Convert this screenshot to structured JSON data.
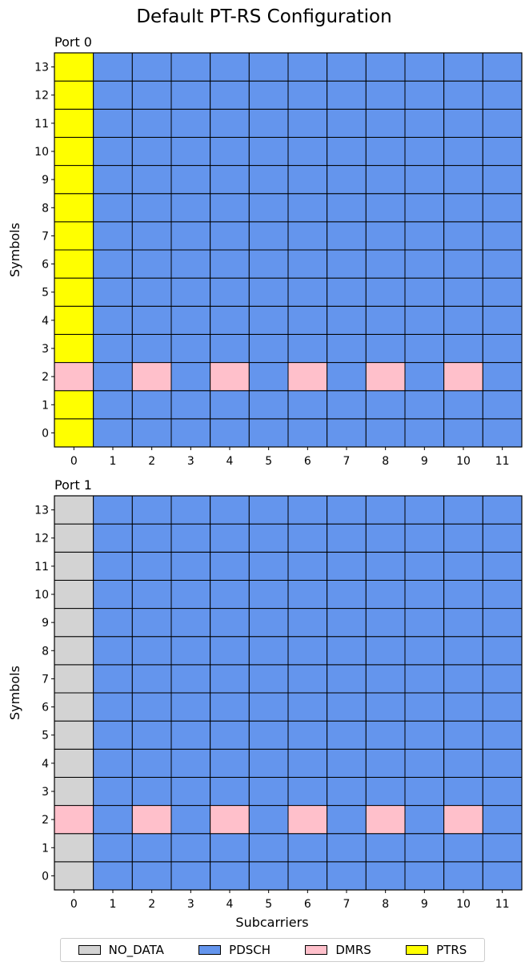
{
  "title": "Default PT-RS Configuration",
  "colors": {
    "NO_DATA": "#d3d3d3",
    "PDSCH": "#6495ed",
    "DMRS": "#ffc0cb",
    "PTRS": "#ffff00"
  },
  "chart_data": [
    {
      "type": "heatmap",
      "title": "Port 0",
      "xlabel": "",
      "ylabel": "Symbols",
      "x": [
        0,
        1,
        2,
        3,
        4,
        5,
        6,
        7,
        8,
        9,
        10,
        11
      ],
      "y": [
        0,
        1,
        2,
        3,
        4,
        5,
        6,
        7,
        8,
        9,
        10,
        11,
        12,
        13
      ],
      "grid": [
        [
          "PTRS",
          "PDSCH",
          "PDSCH",
          "PDSCH",
          "PDSCH",
          "PDSCH",
          "PDSCH",
          "PDSCH",
          "PDSCH",
          "PDSCH",
          "PDSCH",
          "PDSCH"
        ],
        [
          "PTRS",
          "PDSCH",
          "PDSCH",
          "PDSCH",
          "PDSCH",
          "PDSCH",
          "PDSCH",
          "PDSCH",
          "PDSCH",
          "PDSCH",
          "PDSCH",
          "PDSCH"
        ],
        [
          "DMRS",
          "PDSCH",
          "DMRS",
          "PDSCH",
          "DMRS",
          "PDSCH",
          "DMRS",
          "PDSCH",
          "DMRS",
          "PDSCH",
          "DMRS",
          "PDSCH"
        ],
        [
          "PTRS",
          "PDSCH",
          "PDSCH",
          "PDSCH",
          "PDSCH",
          "PDSCH",
          "PDSCH",
          "PDSCH",
          "PDSCH",
          "PDSCH",
          "PDSCH",
          "PDSCH"
        ],
        [
          "PTRS",
          "PDSCH",
          "PDSCH",
          "PDSCH",
          "PDSCH",
          "PDSCH",
          "PDSCH",
          "PDSCH",
          "PDSCH",
          "PDSCH",
          "PDSCH",
          "PDSCH"
        ],
        [
          "PTRS",
          "PDSCH",
          "PDSCH",
          "PDSCH",
          "PDSCH",
          "PDSCH",
          "PDSCH",
          "PDSCH",
          "PDSCH",
          "PDSCH",
          "PDSCH",
          "PDSCH"
        ],
        [
          "PTRS",
          "PDSCH",
          "PDSCH",
          "PDSCH",
          "PDSCH",
          "PDSCH",
          "PDSCH",
          "PDSCH",
          "PDSCH",
          "PDSCH",
          "PDSCH",
          "PDSCH"
        ],
        [
          "PTRS",
          "PDSCH",
          "PDSCH",
          "PDSCH",
          "PDSCH",
          "PDSCH",
          "PDSCH",
          "PDSCH",
          "PDSCH",
          "PDSCH",
          "PDSCH",
          "PDSCH"
        ],
        [
          "PTRS",
          "PDSCH",
          "PDSCH",
          "PDSCH",
          "PDSCH",
          "PDSCH",
          "PDSCH",
          "PDSCH",
          "PDSCH",
          "PDSCH",
          "PDSCH",
          "PDSCH"
        ],
        [
          "PTRS",
          "PDSCH",
          "PDSCH",
          "PDSCH",
          "PDSCH",
          "PDSCH",
          "PDSCH",
          "PDSCH",
          "PDSCH",
          "PDSCH",
          "PDSCH",
          "PDSCH"
        ],
        [
          "PTRS",
          "PDSCH",
          "PDSCH",
          "PDSCH",
          "PDSCH",
          "PDSCH",
          "PDSCH",
          "PDSCH",
          "PDSCH",
          "PDSCH",
          "PDSCH",
          "PDSCH"
        ],
        [
          "PTRS",
          "PDSCH",
          "PDSCH",
          "PDSCH",
          "PDSCH",
          "PDSCH",
          "PDSCH",
          "PDSCH",
          "PDSCH",
          "PDSCH",
          "PDSCH",
          "PDSCH"
        ],
        [
          "PTRS",
          "PDSCH",
          "PDSCH",
          "PDSCH",
          "PDSCH",
          "PDSCH",
          "PDSCH",
          "PDSCH",
          "PDSCH",
          "PDSCH",
          "PDSCH",
          "PDSCH"
        ],
        [
          "PTRS",
          "PDSCH",
          "PDSCH",
          "PDSCH",
          "PDSCH",
          "PDSCH",
          "PDSCH",
          "PDSCH",
          "PDSCH",
          "PDSCH",
          "PDSCH",
          "PDSCH"
        ]
      ]
    },
    {
      "type": "heatmap",
      "title": "Port 1",
      "xlabel": "Subcarriers",
      "ylabel": "Symbols",
      "x": [
        0,
        1,
        2,
        3,
        4,
        5,
        6,
        7,
        8,
        9,
        10,
        11
      ],
      "y": [
        0,
        1,
        2,
        3,
        4,
        5,
        6,
        7,
        8,
        9,
        10,
        11,
        12,
        13
      ],
      "grid": [
        [
          "NO_DATA",
          "PDSCH",
          "PDSCH",
          "PDSCH",
          "PDSCH",
          "PDSCH",
          "PDSCH",
          "PDSCH",
          "PDSCH",
          "PDSCH",
          "PDSCH",
          "PDSCH"
        ],
        [
          "NO_DATA",
          "PDSCH",
          "PDSCH",
          "PDSCH",
          "PDSCH",
          "PDSCH",
          "PDSCH",
          "PDSCH",
          "PDSCH",
          "PDSCH",
          "PDSCH",
          "PDSCH"
        ],
        [
          "DMRS",
          "PDSCH",
          "DMRS",
          "PDSCH",
          "DMRS",
          "PDSCH",
          "DMRS",
          "PDSCH",
          "DMRS",
          "PDSCH",
          "DMRS",
          "PDSCH"
        ],
        [
          "NO_DATA",
          "PDSCH",
          "PDSCH",
          "PDSCH",
          "PDSCH",
          "PDSCH",
          "PDSCH",
          "PDSCH",
          "PDSCH",
          "PDSCH",
          "PDSCH",
          "PDSCH"
        ],
        [
          "NO_DATA",
          "PDSCH",
          "PDSCH",
          "PDSCH",
          "PDSCH",
          "PDSCH",
          "PDSCH",
          "PDSCH",
          "PDSCH",
          "PDSCH",
          "PDSCH",
          "PDSCH"
        ],
        [
          "NO_DATA",
          "PDSCH",
          "PDSCH",
          "PDSCH",
          "PDSCH",
          "PDSCH",
          "PDSCH",
          "PDSCH",
          "PDSCH",
          "PDSCH",
          "PDSCH",
          "PDSCH"
        ],
        [
          "NO_DATA",
          "PDSCH",
          "PDSCH",
          "PDSCH",
          "PDSCH",
          "PDSCH",
          "PDSCH",
          "PDSCH",
          "PDSCH",
          "PDSCH",
          "PDSCH",
          "PDSCH"
        ],
        [
          "NO_DATA",
          "PDSCH",
          "PDSCH",
          "PDSCH",
          "PDSCH",
          "PDSCH",
          "PDSCH",
          "PDSCH",
          "PDSCH",
          "PDSCH",
          "PDSCH",
          "PDSCH"
        ],
        [
          "NO_DATA",
          "PDSCH",
          "PDSCH",
          "PDSCH",
          "PDSCH",
          "PDSCH",
          "PDSCH",
          "PDSCH",
          "PDSCH",
          "PDSCH",
          "PDSCH",
          "PDSCH"
        ],
        [
          "NO_DATA",
          "PDSCH",
          "PDSCH",
          "PDSCH",
          "PDSCH",
          "PDSCH",
          "PDSCH",
          "PDSCH",
          "PDSCH",
          "PDSCH",
          "PDSCH",
          "PDSCH"
        ],
        [
          "NO_DATA",
          "PDSCH",
          "PDSCH",
          "PDSCH",
          "PDSCH",
          "PDSCH",
          "PDSCH",
          "PDSCH",
          "PDSCH",
          "PDSCH",
          "PDSCH",
          "PDSCH"
        ],
        [
          "NO_DATA",
          "PDSCH",
          "PDSCH",
          "PDSCH",
          "PDSCH",
          "PDSCH",
          "PDSCH",
          "PDSCH",
          "PDSCH",
          "PDSCH",
          "PDSCH",
          "PDSCH"
        ],
        [
          "NO_DATA",
          "PDSCH",
          "PDSCH",
          "PDSCH",
          "PDSCH",
          "PDSCH",
          "PDSCH",
          "PDSCH",
          "PDSCH",
          "PDSCH",
          "PDSCH",
          "PDSCH"
        ],
        [
          "NO_DATA",
          "PDSCH",
          "PDSCH",
          "PDSCH",
          "PDSCH",
          "PDSCH",
          "PDSCH",
          "PDSCH",
          "PDSCH",
          "PDSCH",
          "PDSCH",
          "PDSCH"
        ]
      ]
    }
  ],
  "legend": {
    "placement": "bottom",
    "entries": [
      "NO_DATA",
      "PDSCH",
      "DMRS",
      "PTRS"
    ]
  }
}
